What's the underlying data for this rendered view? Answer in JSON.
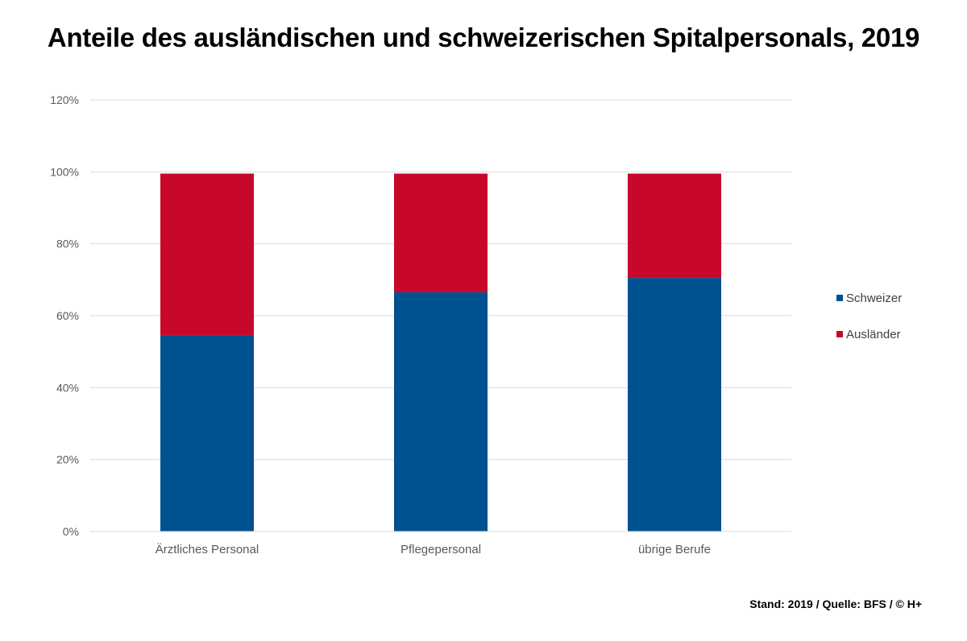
{
  "chart_data": {
    "type": "bar",
    "stacked": true,
    "title": "Anteile des ausländischen und schweizerischen Spitalpersonals, 2019",
    "categories": [
      "Ärztliches Personal",
      "Pflegepersonal",
      "übrige Berufe"
    ],
    "series": [
      {
        "name": "Schweizer",
        "values": [
          54.5,
          66.5,
          70.5
        ],
        "color": "#00518F"
      },
      {
        "name": "Ausländer",
        "values": [
          45.0,
          33.0,
          29.0
        ],
        "color": "#C8082A"
      }
    ],
    "ylim": [
      0,
      120
    ],
    "yticks": [
      0,
      20,
      40,
      60,
      80,
      100,
      120
    ],
    "ytick_suffix": "%",
    "grid": true,
    "legend_position": "right"
  },
  "footer": {
    "source": "Stand: 2019 / Quelle: BFS / © H+"
  },
  "colors": {
    "gridline": "#D9D9D9",
    "axis_text": "#595959"
  }
}
